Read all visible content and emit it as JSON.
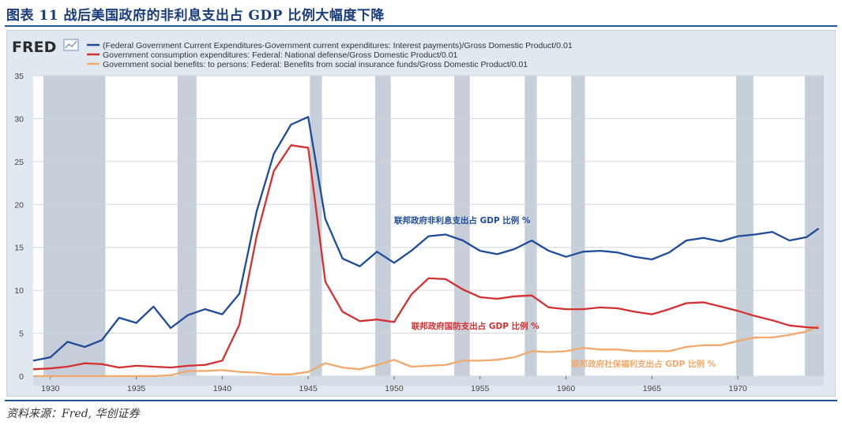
{
  "figure_title": "图表 11 战后美国政府的非利息支出占 GDP 比例大幅度下降",
  "source": "资料来源：Fred, 华创证券",
  "logo": {
    "text": "FRED",
    "icon": "fred-line-chart-icon"
  },
  "colors": {
    "blue": "#1f4c9a",
    "red": "#d62f2f",
    "orange": "#f2a86a",
    "recession": "#bcc6d2",
    "plot_bg": "#ffffff",
    "panel_bg": "#e1e9f0"
  },
  "chart_data": {
    "type": "line",
    "x_range": [
      1929,
      1975
    ],
    "ylim": [
      0,
      35
    ],
    "y_ticks": [
      0,
      5,
      10,
      15,
      20,
      25,
      30,
      35
    ],
    "x_ticks": [
      1930,
      1935,
      1940,
      1945,
      1950,
      1955,
      1960,
      1965,
      1970
    ],
    "grid": "horizontal",
    "legend_position": "top-left",
    "recessions": [
      [
        1929.6,
        1933.2
      ],
      [
        1937.4,
        1938.5
      ],
      [
        1945.1,
        1945.8
      ],
      [
        1948.9,
        1949.8
      ],
      [
        1953.5,
        1954.4
      ],
      [
        1957.6,
        1958.3
      ],
      [
        1960.3,
        1961.1
      ],
      [
        1969.9,
        1970.9
      ],
      [
        1973.9,
        1975
      ]
    ],
    "series": [
      {
        "name": "(Federal Government Current Expenditures-Government current expenditures: Interest payments)/Gross Domestic Product/0.01",
        "color": "#1f4c9a",
        "annotation": "联邦政府非利息支出占 GDP 比例 %",
        "points": [
          [
            1929,
            1.8
          ],
          [
            1930,
            2.2
          ],
          [
            1931,
            4.0
          ],
          [
            1932,
            3.4
          ],
          [
            1933,
            4.2
          ],
          [
            1934,
            6.8
          ],
          [
            1935,
            6.2
          ],
          [
            1936,
            8.1
          ],
          [
            1937,
            5.6
          ],
          [
            1938,
            7.1
          ],
          [
            1939,
            7.8
          ],
          [
            1940,
            7.2
          ],
          [
            1941,
            9.6
          ],
          [
            1942,
            19.2
          ],
          [
            1943,
            25.9
          ],
          [
            1944,
            29.3
          ],
          [
            1945,
            30.2
          ],
          [
            1946,
            18.3
          ],
          [
            1947,
            13.7
          ],
          [
            1948,
            12.8
          ],
          [
            1949,
            14.5
          ],
          [
            1950,
            13.2
          ],
          [
            1951,
            14.6
          ],
          [
            1952,
            16.3
          ],
          [
            1953,
            16.5
          ],
          [
            1954,
            15.8
          ],
          [
            1955,
            14.6
          ],
          [
            1956,
            14.2
          ],
          [
            1957,
            14.8
          ],
          [
            1958,
            15.8
          ],
          [
            1959,
            14.6
          ],
          [
            1960,
            13.9
          ],
          [
            1961,
            14.5
          ],
          [
            1962,
            14.6
          ],
          [
            1963,
            14.4
          ],
          [
            1964,
            13.9
          ],
          [
            1965,
            13.6
          ],
          [
            1966,
            14.4
          ],
          [
            1967,
            15.8
          ],
          [
            1968,
            16.1
          ],
          [
            1969,
            15.7
          ],
          [
            1970,
            16.3
          ],
          [
            1971,
            16.5
          ],
          [
            1972,
            16.8
          ],
          [
            1973,
            15.8
          ],
          [
            1974,
            16.2
          ],
          [
            1974.7,
            17.2
          ]
        ]
      },
      {
        "name": "Government consumption expenditures: Federal: National defense/Gross Domestic Product/0.01",
        "color": "#d62f2f",
        "annotation": "联邦政府国防支出占 GDP 比例 %",
        "points": [
          [
            1929,
            0.8
          ],
          [
            1930,
            0.9
          ],
          [
            1931,
            1.1
          ],
          [
            1932,
            1.5
          ],
          [
            1933,
            1.4
          ],
          [
            1934,
            1.0
          ],
          [
            1935,
            1.2
          ],
          [
            1936,
            1.1
          ],
          [
            1937,
            1.0
          ],
          [
            1938,
            1.2
          ],
          [
            1939,
            1.3
          ],
          [
            1940,
            1.8
          ],
          [
            1941,
            6.0
          ],
          [
            1942,
            16.3
          ],
          [
            1943,
            23.9
          ],
          [
            1944,
            26.9
          ],
          [
            1945,
            26.6
          ],
          [
            1946,
            11.0
          ],
          [
            1947,
            7.5
          ],
          [
            1948,
            6.4
          ],
          [
            1949,
            6.6
          ],
          [
            1950,
            6.3
          ],
          [
            1951,
            9.5
          ],
          [
            1952,
            11.4
          ],
          [
            1953,
            11.3
          ],
          [
            1954,
            10.1
          ],
          [
            1955,
            9.2
          ],
          [
            1956,
            9.0
          ],
          [
            1957,
            9.3
          ],
          [
            1958,
            9.4
          ],
          [
            1959,
            8.0
          ],
          [
            1960,
            7.8
          ],
          [
            1961,
            7.8
          ],
          [
            1962,
            8.0
          ],
          [
            1963,
            7.9
          ],
          [
            1964,
            7.5
          ],
          [
            1965,
            7.2
          ],
          [
            1966,
            7.8
          ],
          [
            1967,
            8.5
          ],
          [
            1968,
            8.6
          ],
          [
            1969,
            8.1
          ],
          [
            1970,
            7.6
          ],
          [
            1971,
            7.0
          ],
          [
            1972,
            6.5
          ],
          [
            1973,
            5.9
          ],
          [
            1974,
            5.7
          ],
          [
            1974.7,
            5.6
          ]
        ]
      },
      {
        "name": "Government social benefits: to persons: Federal: Benefits from social insurance funds/Gross Domestic Product/0.01",
        "color": "#f2a86a",
        "annotation": "联邦政府社保福利支出占 GDP 比例 %",
        "points": [
          [
            1929,
            0.0
          ],
          [
            1935,
            0.0
          ],
          [
            1936,
            0.0
          ],
          [
            1937,
            0.1
          ],
          [
            1938,
            0.6
          ],
          [
            1939,
            0.6
          ],
          [
            1940,
            0.7
          ],
          [
            1941,
            0.5
          ],
          [
            1942,
            0.4
          ],
          [
            1943,
            0.2
          ],
          [
            1944,
            0.2
          ],
          [
            1945,
            0.5
          ],
          [
            1946,
            1.5
          ],
          [
            1947,
            1.0
          ],
          [
            1948,
            0.8
          ],
          [
            1949,
            1.3
          ],
          [
            1950,
            1.9
          ],
          [
            1951,
            1.1
          ],
          [
            1952,
            1.2
          ],
          [
            1953,
            1.3
          ],
          [
            1954,
            1.8
          ],
          [
            1955,
            1.8
          ],
          [
            1956,
            1.9
          ],
          [
            1957,
            2.2
          ],
          [
            1958,
            2.9
          ],
          [
            1959,
            2.8
          ],
          [
            1960,
            2.9
          ],
          [
            1961,
            3.3
          ],
          [
            1962,
            3.1
          ],
          [
            1963,
            3.1
          ],
          [
            1964,
            2.9
          ],
          [
            1965,
            2.9
          ],
          [
            1966,
            2.9
          ],
          [
            1967,
            3.4
          ],
          [
            1968,
            3.6
          ],
          [
            1969,
            3.6
          ],
          [
            1970,
            4.1
          ],
          [
            1971,
            4.5
          ],
          [
            1972,
            4.5
          ],
          [
            1973,
            4.8
          ],
          [
            1974,
            5.2
          ],
          [
            1974.7,
            5.9
          ]
        ]
      }
    ]
  }
}
